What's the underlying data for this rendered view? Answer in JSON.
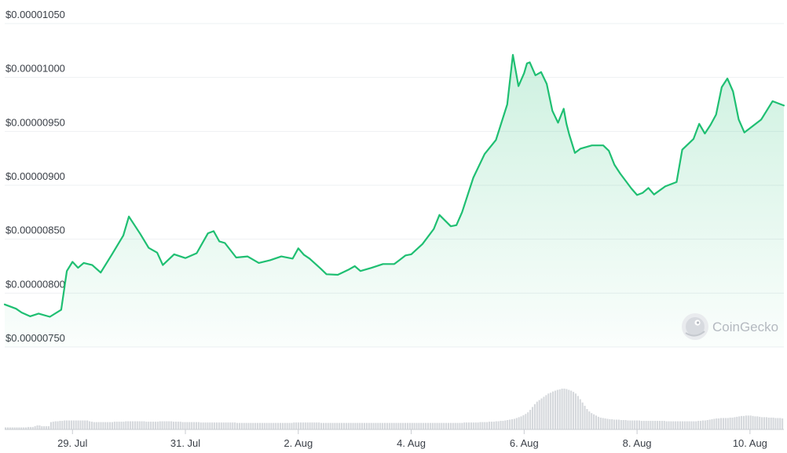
{
  "chart_data": {
    "type": "area",
    "title": "",
    "xlabel": "",
    "ylabel": "",
    "y_tick_labels": [
      "$0.00001050",
      "$0.00001000",
      "$0.00000950",
      "$0.00000900",
      "$0.00000850",
      "$0.00000800",
      "$0.00000750"
    ],
    "y_tick_values": [
      1.05e-05,
      1e-05,
      9.5e-06,
      9e-06,
      8.5e-06,
      8e-06,
      7.5e-06
    ],
    "ylim": [
      7.5e-06,
      1.05e-05
    ],
    "x_tick_labels": [
      "29. Jul",
      "31. Jul",
      "2. Aug",
      "4. Aug",
      "6. Aug",
      "8. Aug",
      "10. Aug"
    ],
    "x_tick_days": [
      1.0,
      3.0,
      5.0,
      7.0,
      9.0,
      11.0,
      13.0
    ],
    "xlim": [
      -0.2,
      13.6
    ],
    "x_unit": "days from 28 Jul 00:00",
    "line_color": "#1fbf72",
    "fill_color": "#1fbf72",
    "grid": true,
    "series": [
      {
        "name": "Price",
        "x": [
          -0.2,
          0.0,
          0.1,
          0.25,
          0.4,
          0.6,
          0.8,
          0.9,
          1.0,
          1.1,
          1.2,
          1.35,
          1.5,
          1.7,
          1.9,
          2.0,
          2.2,
          2.35,
          2.5,
          2.6,
          2.8,
          3.0,
          3.2,
          3.4,
          3.5,
          3.6,
          3.7,
          3.9,
          4.1,
          4.3,
          4.5,
          4.7,
          4.9,
          5.0,
          5.1,
          5.2,
          5.4,
          5.5,
          5.7,
          5.9,
          6.0,
          6.1,
          6.3,
          6.5,
          6.7,
          6.9,
          7.0,
          7.2,
          7.4,
          7.5,
          7.7,
          7.8,
          7.9,
          8.1,
          8.3,
          8.5,
          8.7,
          8.8,
          8.9,
          9.0,
          9.05,
          9.1,
          9.2,
          9.3,
          9.4,
          9.5,
          9.6,
          9.7,
          9.75,
          9.8,
          9.9,
          10.0,
          10.2,
          10.4,
          10.5,
          10.6,
          10.7,
          10.8,
          10.9,
          11.0,
          11.1,
          11.2,
          11.3,
          11.5,
          11.7,
          11.8,
          12.0,
          12.1,
          12.2,
          12.3,
          12.4,
          12.5,
          12.6,
          12.7,
          12.8,
          12.9,
          13.0,
          13.2,
          13.4,
          13.5,
          13.6
        ],
        "y": [
          7.895e-06,
          7.855e-06,
          7.82e-06,
          7.785e-06,
          7.81e-06,
          7.78e-06,
          7.845e-06,
          8.205e-06,
          8.29e-06,
          8.235e-06,
          8.28e-06,
          8.26e-06,
          8.19e-06,
          8.36e-06,
          8.535e-06,
          8.71e-06,
          8.55e-06,
          8.42e-06,
          8.375e-06,
          8.26e-06,
          8.36e-06,
          8.325e-06,
          8.37e-06,
          8.555e-06,
          8.575e-06,
          8.48e-06,
          8.465e-06,
          8.33e-06,
          8.34e-06,
          8.28e-06,
          8.305e-06,
          8.34e-06,
          8.32e-06,
          8.415e-06,
          8.355e-06,
          8.32e-06,
          8.225e-06,
          8.175e-06,
          8.17e-06,
          8.22e-06,
          8.25e-06,
          8.205e-06,
          8.235e-06,
          8.27e-06,
          8.27e-06,
          8.35e-06,
          8.36e-06,
          8.455e-06,
          8.595e-06,
          8.725e-06,
          8.62e-06,
          8.63e-06,
          8.75e-06,
          9.07e-06,
          9.29e-06,
          9.42e-06,
          9.75e-06,
          1.021e-05,
          9.92e-06,
          1.004e-05,
          1.013e-05,
          1.014e-05,
          1.002e-05,
          1.005e-05,
          9.94e-06,
          9.69e-06,
          9.58e-06,
          9.71e-06,
          9.57e-06,
          9.47e-06,
          9.3e-06,
          9.34e-06,
          9.37e-06,
          9.37e-06,
          9.32e-06,
          9.19e-06,
          9.11e-06,
          9.04e-06,
          8.97e-06,
          8.91e-06,
          8.93e-06,
          8.975e-06,
          8.915e-06,
          8.99e-06,
          9.03e-06,
          9.33e-06,
          9.43e-06,
          9.57e-06,
          9.48e-06,
          9.56e-06,
          9.655e-06,
          9.91e-06,
          9.99e-06,
          9.87e-06,
          9.61e-06,
          9.49e-06,
          9.53e-06,
          9.61e-06,
          9.78e-06,
          9.76e-06,
          9.74e-06
        ]
      }
    ],
    "volume": {
      "x_start": -0.2,
      "x_end": 13.6,
      "values": [
        0.05,
        0.05,
        0.05,
        0.05,
        0.05,
        0.05,
        0.05,
        0.05,
        0.05,
        0.05,
        0.06,
        0.06,
        0.06,
        0.08,
        0.1,
        0.1,
        0.08,
        0.08,
        0.08,
        0.08,
        0.18,
        0.19,
        0.2,
        0.2,
        0.21,
        0.21,
        0.22,
        0.22,
        0.22,
        0.22,
        0.22,
        0.22,
        0.22,
        0.22,
        0.22,
        0.22,
        0.22,
        0.2,
        0.19,
        0.18,
        0.18,
        0.18,
        0.18,
        0.18,
        0.18,
        0.18,
        0.18,
        0.18,
        0.19,
        0.19,
        0.19,
        0.19,
        0.19,
        0.2,
        0.2,
        0.2,
        0.2,
        0.2,
        0.2,
        0.2,
        0.2,
        0.2,
        0.19,
        0.19,
        0.19,
        0.19,
        0.19,
        0.19,
        0.2,
        0.2,
        0.2,
        0.2,
        0.2,
        0.2,
        0.19,
        0.19,
        0.19,
        0.19,
        0.18,
        0.18,
        0.18,
        0.18,
        0.18,
        0.18,
        0.18,
        0.18,
        0.17,
        0.17,
        0.17,
        0.17,
        0.17,
        0.17,
        0.17,
        0.17,
        0.17,
        0.17,
        0.17,
        0.17,
        0.17,
        0.17,
        0.17,
        0.17,
        0.16,
        0.16,
        0.16,
        0.16,
        0.16,
        0.16,
        0.16,
        0.16,
        0.16,
        0.16,
        0.16,
        0.16,
        0.16,
        0.16,
        0.16,
        0.16,
        0.16,
        0.16,
        0.16,
        0.16,
        0.16,
        0.16,
        0.16,
        0.16,
        0.16,
        0.17,
        0.17,
        0.17,
        0.17,
        0.17,
        0.17,
        0.17,
        0.17,
        0.17,
        0.17,
        0.17,
        0.17,
        0.16,
        0.16,
        0.16,
        0.16,
        0.16,
        0.16,
        0.16,
        0.16,
        0.16,
        0.16,
        0.16,
        0.16,
        0.16,
        0.16,
        0.16,
        0.16,
        0.16,
        0.16,
        0.16,
        0.16,
        0.16,
        0.16,
        0.16,
        0.16,
        0.16,
        0.16,
        0.16,
        0.16,
        0.16,
        0.16,
        0.16,
        0.16,
        0.16,
        0.16,
        0.16,
        0.16,
        0.16,
        0.16,
        0.16,
        0.16,
        0.16,
        0.16,
        0.16,
        0.16,
        0.16,
        0.16,
        0.16,
        0.16,
        0.16,
        0.16,
        0.16,
        0.16,
        0.16,
        0.16,
        0.16,
        0.16,
        0.16,
        0.16,
        0.16,
        0.16,
        0.16,
        0.16,
        0.16,
        0.17,
        0.17,
        0.17,
        0.17,
        0.17,
        0.17,
        0.17,
        0.18,
        0.18,
        0.18,
        0.18,
        0.19,
        0.19,
        0.19,
        0.2,
        0.2,
        0.21,
        0.21,
        0.22,
        0.23,
        0.24,
        0.25,
        0.26,
        0.28,
        0.3,
        0.32,
        0.35,
        0.38,
        0.42,
        0.48,
        0.55,
        0.62,
        0.68,
        0.72,
        0.76,
        0.8,
        0.84,
        0.88,
        0.9,
        0.93,
        0.95,
        0.97,
        0.98,
        1.0,
        1.0,
        0.99,
        0.97,
        0.95,
        0.92,
        0.88,
        0.82,
        0.74,
        0.66,
        0.58,
        0.5,
        0.44,
        0.4,
        0.37,
        0.34,
        0.31,
        0.29,
        0.28,
        0.27,
        0.26,
        0.25,
        0.25,
        0.24,
        0.24,
        0.24,
        0.23,
        0.23,
        0.23,
        0.22,
        0.22,
        0.22,
        0.22,
        0.22,
        0.22,
        0.21,
        0.21,
        0.21,
        0.21,
        0.21,
        0.21,
        0.21,
        0.21,
        0.21,
        0.21,
        0.21,
        0.2,
        0.2,
        0.2,
        0.2,
        0.2,
        0.2,
        0.2,
        0.2,
        0.2,
        0.2,
        0.2,
        0.2,
        0.2,
        0.2,
        0.21,
        0.21,
        0.22,
        0.22,
        0.23,
        0.24,
        0.25,
        0.26,
        0.27,
        0.27,
        0.28,
        0.28,
        0.28,
        0.28,
        0.29,
        0.29,
        0.3,
        0.31,
        0.32,
        0.33,
        0.33,
        0.34,
        0.34,
        0.34,
        0.33,
        0.32,
        0.32,
        0.31,
        0.3,
        0.3,
        0.3,
        0.29,
        0.29,
        0.29,
        0.28,
        0.28,
        0.28,
        0.27
      ]
    }
  },
  "watermark": {
    "text": "CoinGecko",
    "icon": "gecko-logo-icon"
  }
}
